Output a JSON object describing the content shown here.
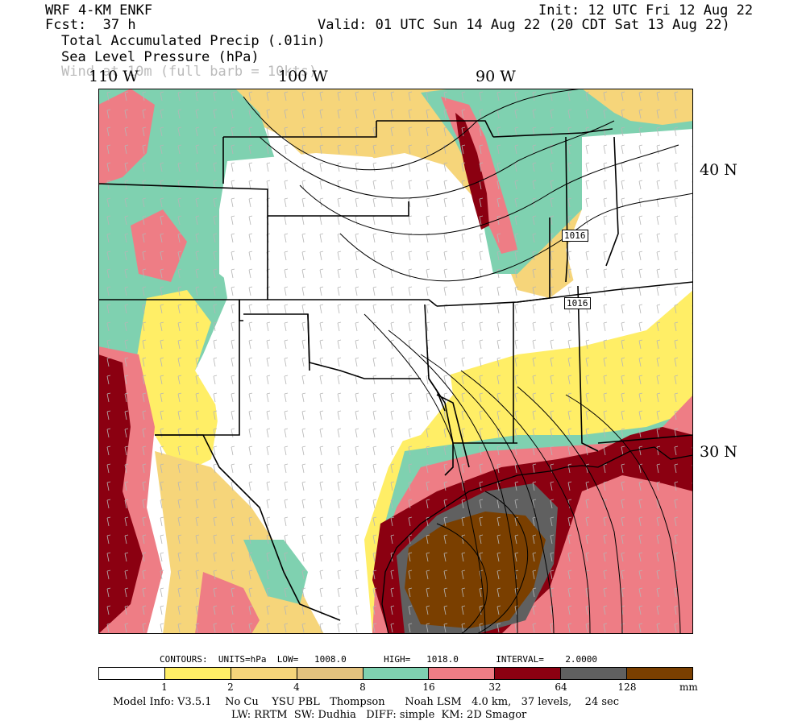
{
  "header": {
    "model": "WRF 4-KM ENKF",
    "init": "Init: 12 UTC Fri 12 Aug 22",
    "fcst": "Fcst:  37 h",
    "valid": "Valid: 01 UTC Sun 14 Aug 22 (20 CDT Sat 13 Aug 22)",
    "field1": "Total Accumulated Precip (.01in)",
    "field2": "Sea Level Pressure (hPa)",
    "field3": "Wind at 10m (full barb = 10kts)"
  },
  "map": {
    "lon_labels": [
      "110 W",
      "100 W",
      "90 W"
    ],
    "lat_labels": [
      "40 N",
      "30 N"
    ],
    "isobar_labels": [
      "1016",
      "1016"
    ]
  },
  "contours": {
    "line": "CONTOURS:  UNITS=hPa  LOW=   1008.0       HIGH=   1018.0       INTERVAL=    2.0000"
  },
  "colorbar": {
    "colors": [
      "#ffffff",
      "#ffee66",
      "#f6d57a",
      "#e3c27e",
      "#7fd1b0",
      "#ee7d85",
      "#8b0011",
      "#606060",
      "#7a3f00"
    ],
    "ticks": [
      "1",
      "2",
      "4",
      "8",
      "16",
      "32",
      "64",
      "128"
    ],
    "units": "mm"
  },
  "footer": {
    "line1": "Model Info: V3.5.1    No Cu    YSU PBL   Thompson      Noah LSM   4.0 km,   37 levels,    24 sec",
    "line2": "LW: RRTM  SW: Dudhia   DIFF: simple  KM: 2D Smagor"
  }
}
